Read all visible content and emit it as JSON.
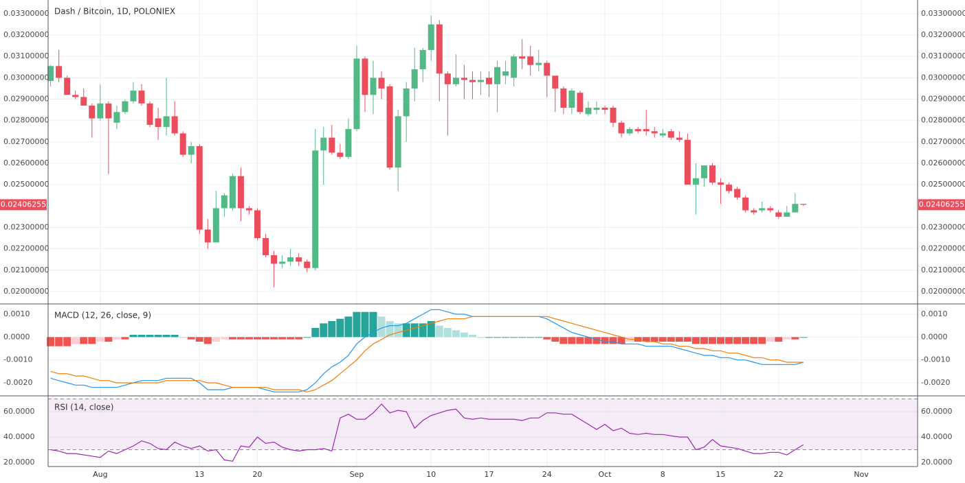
{
  "chart_data": [
    {
      "type": "candlestick",
      "title": "Dash / Bitcoin, 1D, POLONIEX",
      "x": [
        0,
        1,
        2,
        3,
        4,
        5,
        6,
        7,
        8,
        9,
        10,
        11,
        12,
        13,
        14,
        15,
        16,
        17,
        18,
        19,
        20,
        21,
        22,
        23,
        24,
        25,
        26,
        27,
        28,
        29,
        30,
        31,
        32,
        33,
        34,
        35,
        36,
        37,
        38,
        39,
        40,
        41,
        42,
        43,
        44,
        45,
        46,
        47,
        48,
        49,
        50,
        51,
        52,
        53,
        54,
        55,
        56,
        57,
        58,
        59,
        60,
        61,
        62,
        63,
        64,
        65,
        66,
        67,
        68,
        69,
        70,
        71,
        72,
        73,
        74,
        75,
        76,
        77,
        78,
        79,
        80,
        81,
        82,
        83,
        84,
        85,
        86,
        87,
        88,
        89,
        90,
        91
      ],
      "open": [
        0.02985,
        0.03055,
        0.03,
        0.0292,
        0.0291,
        0.0287,
        0.0281,
        0.0288,
        0.0279,
        0.0284,
        0.0289,
        0.0294,
        0.0288,
        0.0281,
        0.0277,
        0.0282,
        0.0274,
        0.0264,
        0.0268,
        0.0229,
        0.0223,
        0.0239,
        0.0239,
        0.0254,
        0.0239,
        0.0238,
        0.0225,
        0.0217,
        0.0213,
        0.0214,
        0.0216,
        0.0214,
        0.0211,
        0.0266,
        0.0272,
        0.0265,
        0.0263,
        0.0276,
        0.0309,
        0.0292,
        0.03,
        0.0296,
        0.0258,
        0.0282,
        0.0295,
        0.0304,
        0.0313,
        0.0325,
        0.0302,
        0.0297,
        0.03,
        0.0299,
        0.0298,
        0.03,
        0.0297,
        0.0301,
        0.03,
        0.031,
        0.031,
        0.0306,
        0.0307,
        0.0301,
        0.0295,
        0.0286,
        0.0293,
        0.0283,
        0.0285,
        0.0286,
        0.0286,
        0.0279,
        0.0274,
        0.0276,
        0.0276,
        0.0275,
        0.0273,
        0.0275,
        0.0272,
        0.0271,
        0.025,
        0.0253,
        0.0259,
        0.0251,
        0.025,
        0.0248,
        0.0244,
        0.0238,
        0.0238,
        0.0239,
        0.0237,
        0.0235,
        0.0237,
        0.0241
      ],
      "high": [
        0.0306,
        0.0313,
        0.0301,
        0.0294,
        0.0295,
        0.0288,
        0.0297,
        0.0289,
        0.0287,
        0.029,
        0.0298,
        0.0297,
        0.0289,
        0.0286,
        0.03,
        0.0289,
        0.0275,
        0.027,
        0.0269,
        0.0234,
        0.0247,
        0.0246,
        0.0255,
        0.0258,
        0.024,
        0.0239,
        0.0227,
        0.0219,
        0.0217,
        0.022,
        0.0218,
        0.0215,
        0.0276,
        0.0277,
        0.0278,
        0.0269,
        0.0281,
        0.0315,
        0.031,
        0.0308,
        0.0303,
        0.0297,
        0.0285,
        0.0298,
        0.0314,
        0.0314,
        0.0329,
        0.0327,
        0.0303,
        0.0311,
        0.0306,
        0.0303,
        0.0303,
        0.0303,
        0.0308,
        0.0308,
        0.0311,
        0.0318,
        0.0315,
        0.0313,
        0.0308,
        0.0301,
        0.0296,
        0.0295,
        0.0294,
        0.0289,
        0.0289,
        0.0287,
        0.0287,
        0.028,
        0.0277,
        0.0277,
        0.0285,
        0.0277,
        0.0276,
        0.0276,
        0.0275,
        0.0274,
        0.026,
        0.0259,
        0.026,
        0.0253,
        0.0251,
        0.0249,
        0.0245,
        0.0239,
        0.0242,
        0.024,
        0.0238,
        0.024,
        0.0246,
        0.0241
      ],
      "low": [
        0.0296,
        0.0298,
        0.0292,
        0.029,
        0.0287,
        0.0272,
        0.028,
        0.0255,
        0.0276,
        0.0283,
        0.0288,
        0.0287,
        0.0277,
        0.0271,
        0.0273,
        0.0273,
        0.0263,
        0.026,
        0.0227,
        0.022,
        0.0223,
        0.0235,
        0.0238,
        0.0233,
        0.0236,
        0.0224,
        0.0216,
        0.0202,
        0.0211,
        0.0212,
        0.0212,
        0.0209,
        0.021,
        0.025,
        0.0264,
        0.0262,
        0.0262,
        0.0275,
        0.0284,
        0.0283,
        0.029,
        0.0257,
        0.0247,
        0.027,
        0.0289,
        0.0298,
        0.0308,
        0.0289,
        0.0273,
        0.0296,
        0.029,
        0.029,
        0.0292,
        0.0291,
        0.0284,
        0.0297,
        0.0296,
        0.0304,
        0.0301,
        0.0303,
        0.0291,
        0.0284,
        0.0283,
        0.0283,
        0.0283,
        0.0282,
        0.0283,
        0.0283,
        0.0277,
        0.0272,
        0.0273,
        0.0274,
        0.0273,
        0.0272,
        0.0272,
        0.0271,
        0.027,
        0.025,
        0.0236,
        0.0249,
        0.025,
        0.0241,
        0.0246,
        0.0243,
        0.0237,
        0.0236,
        0.0237,
        0.0237,
        0.0234,
        0.0235,
        0.0237,
        0.024
      ],
      "close": [
        0.03055,
        0.03,
        0.0292,
        0.0291,
        0.0287,
        0.0281,
        0.0288,
        0.0281,
        0.0284,
        0.0289,
        0.0294,
        0.0288,
        0.0278,
        0.0277,
        0.0282,
        0.0274,
        0.0264,
        0.0268,
        0.0229,
        0.0223,
        0.0239,
        0.0245,
        0.0254,
        0.0239,
        0.0238,
        0.0225,
        0.0217,
        0.0213,
        0.0214,
        0.0216,
        0.0214,
        0.0211,
        0.0266,
        0.0272,
        0.0265,
        0.0263,
        0.0276,
        0.0309,
        0.0292,
        0.03,
        0.0295,
        0.0258,
        0.0282,
        0.0295,
        0.0304,
        0.0313,
        0.0325,
        0.0302,
        0.0297,
        0.03,
        0.0299,
        0.0298,
        0.0299,
        0.0297,
        0.0305,
        0.0303,
        0.031,
        0.0309,
        0.0306,
        0.0307,
        0.0301,
        0.0295,
        0.0286,
        0.0294,
        0.0284,
        0.0286,
        0.0286,
        0.0285,
        0.0279,
        0.0274,
        0.0276,
        0.0275,
        0.0275,
        0.0274,
        0.0274,
        0.0272,
        0.0271,
        0.025,
        0.0253,
        0.0259,
        0.0251,
        0.025,
        0.0247,
        0.0244,
        0.0238,
        0.0237,
        0.0239,
        0.0238,
        0.0235,
        0.0237,
        0.0241,
        0.02406
      ],
      "up_color": "#53b987",
      "down_color": "#eb4d5c",
      "last_price": 0.02406255,
      "xlim": [
        -0.3,
        104.8
      ],
      "ylim": [
        0.01942,
        0.03364
      ],
      "yticks": [
        {
          "value": 0.02,
          "label": "0.02000000"
        },
        {
          "value": 0.021,
          "label": "0.02100000"
        },
        {
          "value": 0.022,
          "label": "0.02200000"
        },
        {
          "value": 0.023,
          "label": "0.02300000"
        },
        {
          "value": 0.025,
          "label": "0.02500000"
        },
        {
          "value": 0.026,
          "label": "0.02600000"
        },
        {
          "value": 0.027,
          "label": "0.02700000"
        },
        {
          "value": 0.028,
          "label": "0.02800000"
        },
        {
          "value": 0.029,
          "label": "0.02900000"
        },
        {
          "value": 0.03,
          "label": "0.03000000"
        },
        {
          "value": 0.031,
          "label": "0.03100000"
        },
        {
          "value": 0.032,
          "label": "0.03200000"
        },
        {
          "value": 0.033,
          "label": "0.03300000"
        }
      ],
      "grid": true
    },
    {
      "type": "macd",
      "title": "MACD (12, 26, close, 9)",
      "x": [
        0,
        1,
        2,
        3,
        4,
        5,
        6,
        7,
        8,
        9,
        10,
        11,
        12,
        13,
        14,
        15,
        16,
        17,
        18,
        19,
        20,
        21,
        22,
        23,
        24,
        25,
        26,
        27,
        28,
        29,
        30,
        31,
        32,
        33,
        34,
        35,
        36,
        37,
        38,
        39,
        40,
        41,
        42,
        43,
        44,
        45,
        46,
        47,
        48,
        49,
        50,
        51,
        52,
        53,
        54,
        55,
        56,
        57,
        58,
        59,
        60,
        61,
        62,
        63,
        64,
        65,
        66,
        67,
        68,
        69,
        70,
        71,
        72,
        73,
        74,
        75,
        76,
        77,
        78,
        79,
        80,
        81,
        82,
        83,
        84,
        85,
        86,
        87,
        88,
        89,
        90,
        91
      ],
      "histogram": [
        -0.0004,
        -0.0004,
        -0.0004,
        -0.0003,
        -0.0003,
        -0.0003,
        -0.0002,
        -0.0002,
        -0.0001,
        -0.0001,
        0.0001,
        0.0001,
        0.0001,
        0.0001,
        0.0001,
        0.0001,
        0,
        -0.0001,
        -0.0002,
        -0.0003,
        -0.0002,
        -0.0001,
        -0.0001,
        -0.0001,
        -0.0001,
        -0.0001,
        -0.0001,
        -0.0001,
        -0.0001,
        -0.0001,
        -0.0001,
        0,
        0.0004,
        0.0006,
        0.0007,
        0.0008,
        0.0009,
        0.0011,
        0.0011,
        0.0011,
        0.0009,
        0.0007,
        0.0006,
        0.0006,
        0.0006,
        0.0006,
        0.0007,
        0.0005,
        0.0004,
        0.0003,
        0.0002,
        0.0001,
        0,
        0,
        0,
        0,
        0,
        0,
        0,
        0,
        -0.0001,
        -0.0002,
        -0.0003,
        -0.0003,
        -0.0003,
        -0.0003,
        -0.0003,
        -0.0003,
        -0.0003,
        -0.0003,
        -0.0002,
        -0.0002,
        -0.0002,
        -0.0002,
        -0.0002,
        -0.0002,
        -0.0002,
        -0.0002,
        -0.0003,
        -0.0003,
        -0.0003,
        -0.0003,
        -0.0003,
        -0.0003,
        -0.0003,
        -0.0003,
        -0.0003,
        -0.0002,
        -0.0002,
        -0.0001,
        -0.0001,
        0
      ],
      "series": [
        {
          "color": "#2196f3",
          "values": [
            -0.0018,
            -0.0019,
            -0.002,
            -0.0021,
            -0.0021,
            -0.0022,
            -0.0022,
            -0.0022,
            -0.0022,
            -0.0021,
            -0.002,
            -0.0019,
            -0.0019,
            -0.0019,
            -0.0018,
            -0.0018,
            -0.0018,
            -0.0018,
            -0.002,
            -0.0023,
            -0.0023,
            -0.0023,
            -0.0022,
            -0.0022,
            -0.0022,
            -0.0022,
            -0.0023,
            -0.0024,
            -0.0024,
            -0.0024,
            -0.0024,
            -0.0023,
            -0.002,
            -0.0016,
            -0.0013,
            -0.0011,
            -0.0008,
            -0.0003,
            0,
            0.0002,
            0.0004,
            0.0005,
            0.0005,
            0.0006,
            0.0008,
            0.001,
            0.0012,
            0.0012,
            0.0011,
            0.001,
            0.001,
            0.0009,
            0.0009,
            0.0009,
            0.0009,
            0.0009,
            0.0009,
            0.0009,
            0.0009,
            0.0009,
            0.0008,
            0.0006,
            0.0004,
            0.0002,
            0.0001,
            0,
            -0.0001,
            -0.0002,
            -0.0002,
            -0.0003,
            -0.0003,
            -0.0003,
            -0.0004,
            -0.0004,
            -0.0004,
            -0.0004,
            -0.0005,
            -0.0006,
            -0.0007,
            -0.0008,
            -0.0008,
            -0.0009,
            -0.0009,
            -0.001,
            -0.001,
            -0.0011,
            -0.0012,
            -0.0012,
            -0.0012,
            -0.0012,
            -0.0012,
            -0.0011
          ]
        },
        {
          "color": "#f57c00",
          "values": [
            -0.0015,
            -0.0016,
            -0.0016,
            -0.0017,
            -0.0017,
            -0.0018,
            -0.0019,
            -0.0019,
            -0.002,
            -0.002,
            -0.002,
            -0.002,
            -0.002,
            -0.002,
            -0.0019,
            -0.0019,
            -0.0019,
            -0.0019,
            -0.0019,
            -0.002,
            -0.002,
            -0.0021,
            -0.0022,
            -0.0022,
            -0.0022,
            -0.0022,
            -0.0022,
            -0.0023,
            -0.0023,
            -0.0023,
            -0.0023,
            -0.0024,
            -0.0023,
            -0.0021,
            -0.0019,
            -0.0016,
            -0.0013,
            -0.001,
            -0.0006,
            -0.0003,
            -0.0001,
            0.0001,
            0.0002,
            0.0003,
            0.0004,
            0.0005,
            0.0006,
            0.0007,
            0.0008,
            0.0008,
            0.0008,
            0.0009,
            0.0009,
            0.0009,
            0.0009,
            0.0009,
            0.0009,
            0.0009,
            0.0009,
            0.0009,
            0.0009,
            0.0008,
            0.0007,
            0.0006,
            0.0005,
            0.0004,
            0.0003,
            0.0002,
            0.0001,
            0,
            -0.0001,
            -0.0001,
            -0.0002,
            -0.0002,
            -0.0003,
            -0.0003,
            -0.0004,
            -0.0004,
            -0.0005,
            -0.0005,
            -0.0006,
            -0.0006,
            -0.0007,
            -0.0007,
            -0.0008,
            -0.0009,
            -0.0009,
            -0.001,
            -0.001,
            -0.0011,
            -0.0011,
            -0.0011
          ]
        }
      ],
      "xlim": [
        -0.3,
        104.8
      ],
      "ylim": [
        -0.00257,
        0.00145
      ],
      "yticks": [
        {
          "value": 0.001,
          "label": "0.0010"
        },
        {
          "value": 0,
          "label": "0.0000"
        },
        {
          "value": -0.001,
          "label": "-0.0010"
        },
        {
          "value": -0.002,
          "label": "-0.0020"
        }
      ],
      "grid": true
    },
    {
      "type": "rsi",
      "title": "RSI (14, close)",
      "x": [
        0,
        1,
        2,
        3,
        4,
        5,
        6,
        7,
        8,
        9,
        10,
        11,
        12,
        13,
        14,
        15,
        16,
        17,
        18,
        19,
        20,
        21,
        22,
        23,
        24,
        25,
        26,
        27,
        28,
        29,
        30,
        31,
        32,
        33,
        34,
        35,
        36,
        37,
        38,
        39,
        40,
        41,
        42,
        43,
        44,
        45,
        46,
        47,
        48,
        49,
        50,
        51,
        52,
        53,
        54,
        55,
        56,
        57,
        58,
        59,
        60,
        61,
        62,
        63,
        64,
        65,
        66,
        67,
        68,
        69,
        70,
        71,
        72,
        73,
        74,
        75,
        76,
        77,
        78,
        79,
        80,
        81,
        82,
        83,
        84,
        85,
        86,
        87,
        88,
        89,
        90,
        91
      ],
      "values": [
        30,
        29,
        27,
        27,
        26,
        25,
        24,
        29,
        27,
        30,
        33,
        37,
        35,
        31,
        30,
        36,
        33,
        31,
        33,
        29,
        30,
        22,
        21,
        33,
        32,
        40,
        35,
        36,
        32,
        30,
        29,
        30,
        30,
        31,
        29,
        55,
        58,
        54,
        54,
        59,
        66,
        59,
        61,
        60,
        47,
        53,
        57,
        59,
        61,
        62,
        55,
        54,
        55,
        54,
        54,
        54,
        54,
        53,
        55,
        55,
        59,
        59,
        58,
        58,
        54,
        50,
        46,
        50,
        45,
        47,
        43,
        42,
        43,
        42,
        42,
        41,
        40,
        40,
        30,
        32,
        38,
        33,
        32,
        31,
        29,
        27,
        27,
        28,
        28,
        26,
        30,
        34
      ],
      "color": "#9c27b0",
      "bands": [
        30,
        70
      ],
      "xlim": [
        -0.3,
        104.8
      ],
      "ylim": [
        16.8,
        72.4
      ],
      "yticks": [
        {
          "value": 60,
          "label": "60.0000"
        },
        {
          "value": 40,
          "label": "40.0000"
        },
        {
          "value": 20,
          "label": "20.0000"
        }
      ],
      "xticks": [
        {
          "value": 6,
          "label": "Aug"
        },
        {
          "value": 18,
          "label": "13"
        },
        {
          "value": 25,
          "label": "20"
        },
        {
          "value": 37,
          "label": "Sep"
        },
        {
          "value": 46,
          "label": "10"
        },
        {
          "value": 53,
          "label": "17"
        },
        {
          "value": 60,
          "label": "24"
        },
        {
          "value": 67,
          "label": "Oct"
        },
        {
          "value": 74,
          "label": "8"
        },
        {
          "value": 81,
          "label": "15"
        },
        {
          "value": 88,
          "label": "22"
        },
        {
          "value": 98,
          "label": "Nov"
        }
      ],
      "grid": true
    }
  ]
}
